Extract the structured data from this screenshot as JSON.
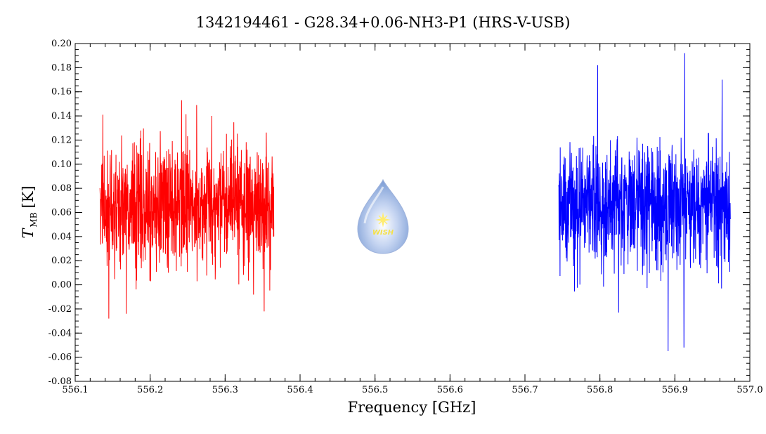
{
  "chart_data": {
    "type": "line",
    "title": "1342194461 - G28.34+0.06-NH3-P1 (HRS-V-USB)",
    "xlabel": "Frequency [GHz]",
    "ylabel_main": "T",
    "ylabel_sub": "MB",
    "ylabel_unit": "[K]",
    "xlim": [
      556.1,
      557.0
    ],
    "ylim": [
      -0.08,
      0.2
    ],
    "xticks": [
      "556.1",
      "556.2",
      "556.3",
      "556.4",
      "556.5",
      "556.6",
      "556.7",
      "556.8",
      "556.9",
      "557.0"
    ],
    "yticks": [
      "0.20",
      "0.18",
      "0.16",
      "0.14",
      "0.12",
      "0.10",
      "0.08",
      "0.06",
      "0.04",
      "0.02",
      "0.00",
      "-0.02",
      "-0.04",
      "-0.06",
      "-0.08"
    ],
    "grid": false,
    "series": [
      {
        "color": "#ff0000",
        "x_range": [
          556.133,
          556.365
        ],
        "mean": 0.065,
        "points": 900,
        "seed": 7,
        "extremes": [
          [
            556.145,
            -0.028
          ],
          [
            556.168,
            -0.024
          ],
          [
            556.242,
            0.153
          ],
          [
            556.262,
            0.149
          ],
          [
            556.352,
            -0.022
          ],
          [
            556.137,
            0.141
          ]
        ]
      },
      {
        "color": "#0000ff",
        "x_range": [
          556.745,
          556.974
        ],
        "mean": 0.065,
        "points": 900,
        "seed": 13,
        "extremes": [
          [
            556.913,
            0.192
          ],
          [
            556.797,
            0.182
          ],
          [
            556.891,
            -0.055
          ],
          [
            556.912,
            -0.052
          ],
          [
            556.825,
            -0.023
          ],
          [
            556.963,
            0.17
          ]
        ]
      }
    ]
  },
  "logo": {
    "text": "WISH",
    "icon": "wish-drop-logo"
  }
}
